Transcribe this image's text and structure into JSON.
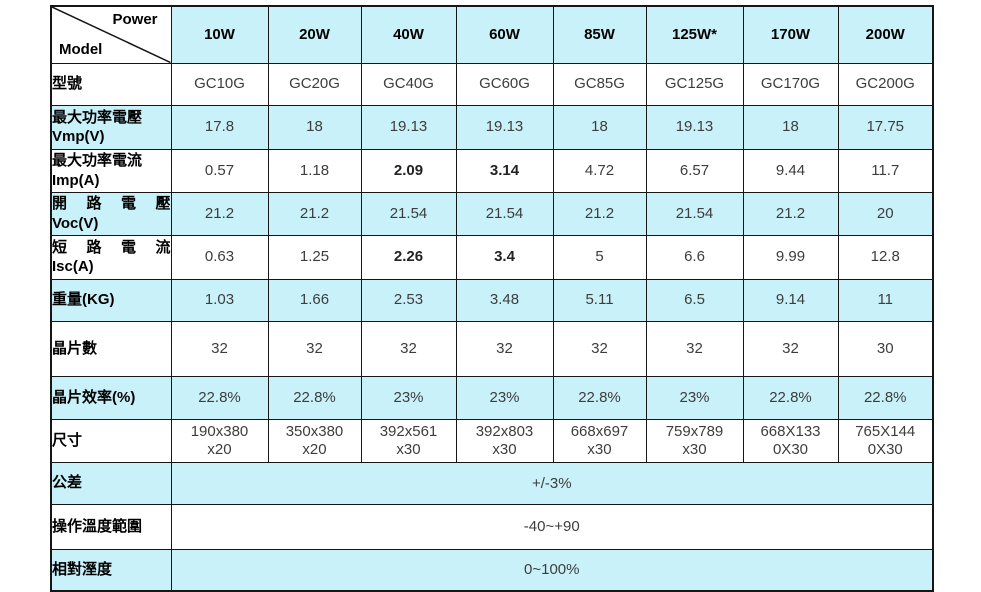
{
  "table": {
    "corner": {
      "top_right": "Power",
      "bottom_left": "Model"
    },
    "columns": [
      "10W",
      "20W",
      "40W",
      "60W",
      "85W",
      "125W*",
      "170W",
      "200W"
    ],
    "rows": [
      {
        "name": "model-number",
        "label": "型號",
        "bg": "white",
        "values": [
          "GC10G",
          "GC20G",
          "GC40G",
          "GC60G",
          "GC85G",
          "GC125G",
          "GC170G",
          "GC200G"
        ]
      },
      {
        "name": "max-power-voltage",
        "label": "最大功率電壓",
        "label2": "Vmp(V)",
        "bg": "cyan",
        "values": [
          "17.8",
          "18",
          "19.13",
          "19.13",
          "18",
          "19.13",
          "18",
          "17.75"
        ]
      },
      {
        "name": "max-power-current",
        "label": "最大功率電流",
        "label2": "Imp(A)",
        "bg": "white",
        "values": [
          "0.57",
          "1.18",
          "2.09",
          "3.14",
          "4.72",
          "6.57",
          "9.44",
          "11.7"
        ],
        "bold": [
          2,
          3
        ]
      },
      {
        "name": "open-circuit-voltage",
        "label": "開路電壓",
        "label2": "Voc(V)",
        "justify": true,
        "bg": "cyan",
        "values": [
          "21.2",
          "21.2",
          "21.54",
          "21.54",
          "21.2",
          "21.54",
          "21.2",
          "20"
        ]
      },
      {
        "name": "short-circuit-current",
        "label": "短路電流",
        "label2": "Isc(A)",
        "justify": true,
        "bg": "white",
        "values": [
          "0.63",
          "1.25",
          "2.26",
          "3.4",
          "5",
          "6.6",
          "9.99",
          "12.8"
        ],
        "bold": [
          2,
          3
        ]
      },
      {
        "name": "weight-kg",
        "label": "重量(KG)",
        "bg": "cyan",
        "values": [
          "1.03",
          "1.66",
          "2.53",
          "3.48",
          "5.11",
          "6.5",
          "9.14",
          "11"
        ]
      },
      {
        "name": "cell-count",
        "label": "晶片數",
        "bg": "white",
        "values": [
          "32",
          "32",
          "32",
          "32",
          "32",
          "32",
          "32",
          "30"
        ]
      },
      {
        "name": "cell-efficiency",
        "label": "晶片效率(%)",
        "bg": "cyan",
        "values": [
          "22.8%",
          "22.8%",
          "23%",
          "23%",
          "22.8%",
          "23%",
          "22.8%",
          "22.8%"
        ]
      },
      {
        "name": "dimensions",
        "label": "尺寸",
        "bg": "white",
        "values": [
          [
            "190x380",
            "x20"
          ],
          [
            "350x380",
            "x20"
          ],
          [
            "392x561",
            "x30"
          ],
          [
            "392x803",
            "x30"
          ],
          [
            "668x697",
            "x30"
          ],
          [
            "759x789",
            "x30"
          ],
          [
            "668X133",
            "0X30"
          ],
          [
            "765X144",
            "0X30"
          ]
        ]
      }
    ],
    "merged_rows": [
      {
        "name": "tolerance",
        "label": "公差",
        "value": "+/-3%",
        "bg": "cyan"
      },
      {
        "name": "operating-temperature-range",
        "label": "操作溫度範圍",
        "value": "-40~+90",
        "bg": "white"
      },
      {
        "name": "relative-humidity",
        "label": "相對溼度",
        "value": "0~100%",
        "bg": "cyan"
      }
    ],
    "colors": {
      "cell_cyan": "#c9f1f9",
      "border": "#161616",
      "value_text": "#3d3d3d"
    }
  }
}
